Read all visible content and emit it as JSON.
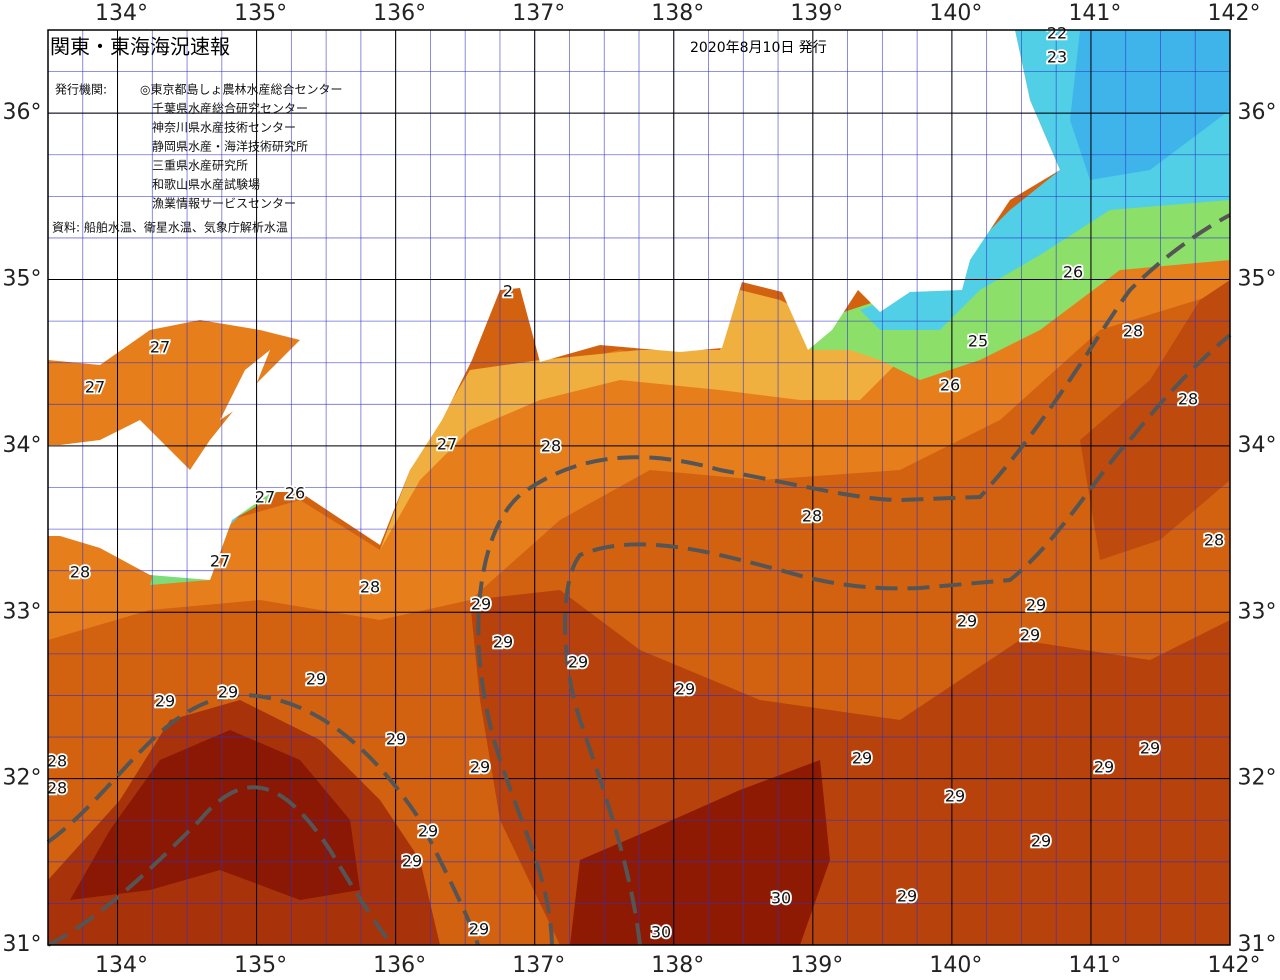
{
  "header": {
    "title": "関東・東海海況速報",
    "date": "2020年8月10日 発行",
    "issuer_label": "発行機関:",
    "issuers": [
      "◎東京都島しょ農林水産総合センター",
      "千葉県水産総合研究センター",
      "神奈川県水産技術センター",
      "静岡県水産・海洋技術研究所",
      "三重県水産研究所",
      "和歌山県水産試験場",
      "漁業情報サービスセンター"
    ],
    "source": "資料: 船舶水温、衛星水温、気象庁解析水温"
  },
  "map": {
    "lon_range": [
      133.5,
      142
    ],
    "lat_range": [
      31,
      36.5
    ],
    "lon_ticks": [
      {
        "value": 134,
        "label": "134°"
      },
      {
        "value": 135,
        "label": "135°"
      },
      {
        "value": 136,
        "label": "136°"
      },
      {
        "value": 137,
        "label": "137°"
      },
      {
        "value": 138,
        "label": "138°"
      },
      {
        "value": 139,
        "label": "139°"
      },
      {
        "value": 140,
        "label": "140°"
      },
      {
        "value": 141,
        "label": "141°"
      },
      {
        "value": 142,
        "label": "142°"
      }
    ],
    "lat_ticks": [
      {
        "value": 31,
        "label": "31°"
      },
      {
        "value": 32,
        "label": "32°"
      },
      {
        "value": 33,
        "label": "33°"
      },
      {
        "value": 34,
        "label": "34°"
      },
      {
        "value": 35,
        "label": "35°"
      },
      {
        "value": 36,
        "label": "36°"
      }
    ],
    "contour_labels": [
      22,
      23,
      26,
      25,
      28,
      26,
      28,
      27,
      27,
      2,
      27,
      28,
      27,
      26,
      27,
      28,
      28,
      28,
      28,
      29,
      29,
      29,
      29,
      29,
      29,
      29,
      29,
      29,
      29,
      29,
      29,
      29,
      29,
      29,
      29,
      28,
      28,
      29,
      29,
      29,
      29,
      30,
      30,
      29
    ]
  }
}
